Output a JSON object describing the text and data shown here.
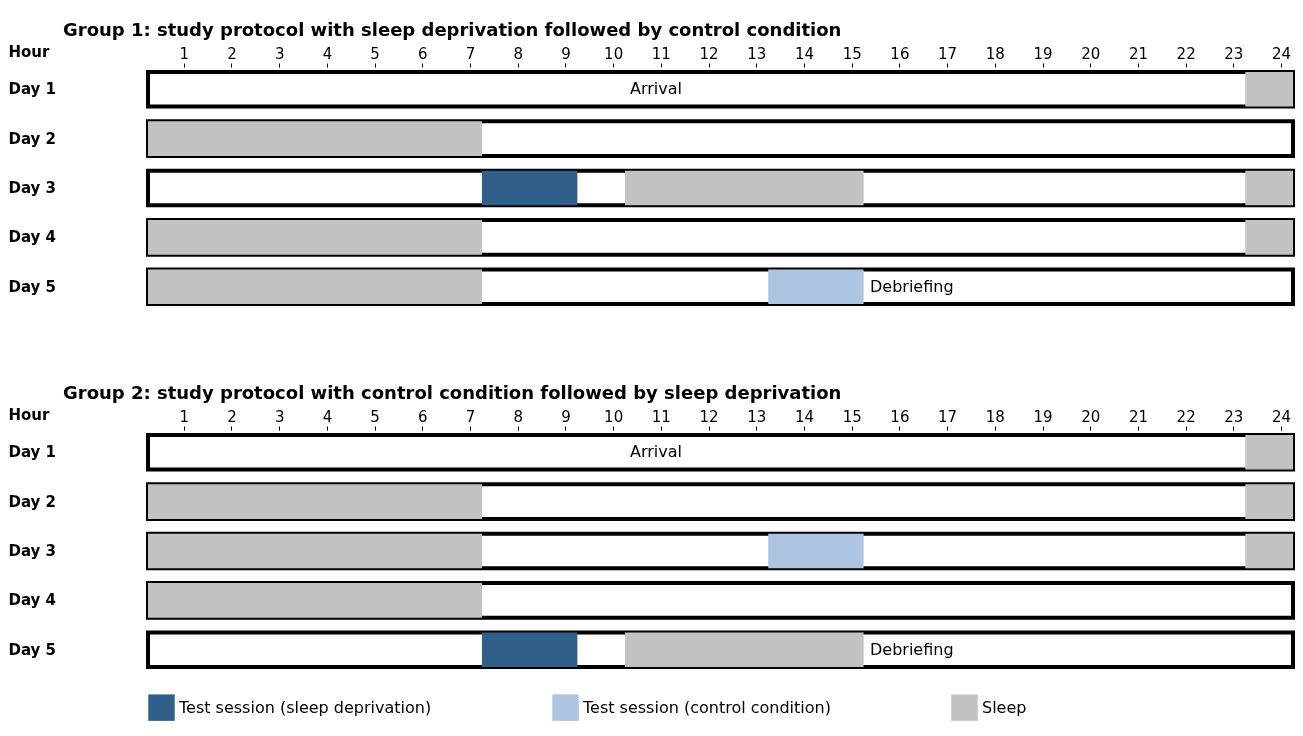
{
  "chart_data": [
    {
      "type": "bar",
      "orientation": "horizontal",
      "title": "Group 1: study protocol with sleep deprivation followed by control condition",
      "xlabel": "Hour",
      "categories": [
        "Day 1",
        "Day 2",
        "Day 3",
        "Day 4",
        "Day 5"
      ],
      "xlim": [
        0.25,
        24.25
      ],
      "xticks": [
        1,
        2,
        3,
        4,
        5,
        6,
        7,
        8,
        9,
        10,
        11,
        12,
        13,
        14,
        15,
        16,
        17,
        18,
        19,
        20,
        21,
        22,
        23,
        24
      ],
      "grid": false,
      "legend": false,
      "series": [
        {
          "color": "#305f8a",
          "values": [
            null,
            null,
            2,
            null,
            null
          ],
          "base": [
            null,
            null,
            7.25,
            null,
            null
          ]
        },
        {
          "color": "#adc5e1",
          "values": [
            null,
            null,
            null,
            null,
            2
          ],
          "base": [
            null,
            null,
            null,
            null,
            13.25
          ]
        },
        {
          "color": "#c2c2c2",
          "values": [
            null,
            7,
            null,
            7,
            7
          ],
          "base": [
            null,
            0.25,
            null,
            0.25,
            0.25
          ]
        },
        {
          "color": "#c2c2c2",
          "values": [
            1,
            null,
            1,
            1,
            null
          ],
          "base": [
            23.25,
            null,
            23.25,
            23.25,
            null
          ]
        },
        {
          "color": "#c2c2c2",
          "values": [
            null,
            null,
            5,
            null,
            null
          ],
          "base": [
            null,
            null,
            10.25,
            null,
            null
          ]
        }
      ],
      "annotations": [
        "Arrival",
        "Debriefing"
      ]
    },
    {
      "type": "bar",
      "orientation": "horizontal",
      "title": "Group 2: study protocol with control condition followed by sleep deprivation",
      "xlabel": "Hour",
      "categories": [
        "Day 1",
        "Day 2",
        "Day 3",
        "Day 4",
        "Day 5"
      ],
      "xlim": [
        0.25,
        24.25
      ],
      "xticks": [
        1,
        2,
        3,
        4,
        5,
        6,
        7,
        8,
        9,
        10,
        11,
        12,
        13,
        14,
        15,
        16,
        17,
        18,
        19,
        20,
        21,
        22,
        23,
        24
      ],
      "grid": false,
      "legend": "bottom",
      "series": [
        {
          "name": "Test session (sleep deprivation)",
          "color": "#305f8a",
          "values": [
            null,
            null,
            null,
            null,
            2
          ],
          "base": [
            null,
            null,
            null,
            null,
            7.25
          ]
        },
        {
          "name": "Test session (control condition)",
          "color": "#adc5e1",
          "values": [
            null,
            null,
            2,
            null,
            null
          ],
          "base": [
            null,
            null,
            13.25,
            null,
            null
          ]
        },
        {
          "name": "Sleep",
          "color": "#c2c2c2",
          "values": [
            null,
            7,
            7,
            7,
            null
          ],
          "base": [
            null,
            0.25,
            0.25,
            0.25,
            null
          ]
        },
        {
          "color": "#c2c2c2",
          "values": [
            1,
            1,
            1,
            null,
            null
          ],
          "base": [
            23.25,
            23.25,
            23.25,
            null,
            null
          ]
        },
        {
          "color": "#c2c2c2",
          "values": [
            null,
            null,
            null,
            null,
            5
          ],
          "base": [
            null,
            null,
            null,
            null,
            10.25
          ]
        }
      ],
      "annotations": [
        "Arrival",
        "Debriefing"
      ]
    }
  ]
}
